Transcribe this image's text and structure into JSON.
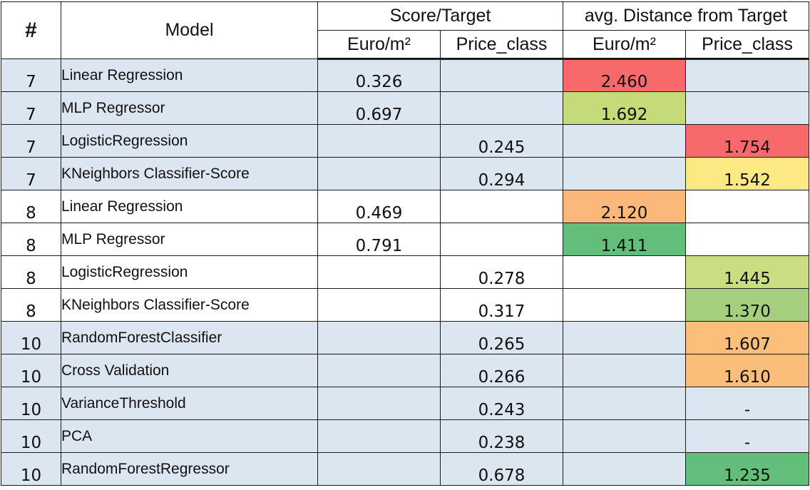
{
  "header": {
    "num": "#",
    "model": "Model",
    "group_score": "Score/Target",
    "group_distance": "avg. Distance from Target",
    "sub_euro_1": "Euro/m²",
    "sub_price_1": "Price_class",
    "sub_euro_2": "Euro/m²",
    "sub_price_2": "Price_class"
  },
  "colors": {
    "blue_row": "#dce6f1",
    "white_row": "#ffffff",
    "red": "#f8696b",
    "orange_red": "#f98370",
    "orange": "#fbbf7a",
    "light_orange": "#fcc07c",
    "yellow": "#ffeb84",
    "yellow_green": "#d3e282",
    "light_green": "#c4dc80",
    "green": "#a3d17e",
    "dark_green": "#63be7b"
  },
  "rows": [
    {
      "num": "7",
      "model": "Linear Regression",
      "score_euro": "0.326",
      "score_price": "",
      "dist_euro": "2.460",
      "dist_price": "",
      "row_bg": "#dce6f1",
      "dist_euro_bg": "#f8696b",
      "dist_price_bg": ""
    },
    {
      "num": "7",
      "model": "MLP Regressor",
      "score_euro": "0.697",
      "score_price": "",
      "dist_euro": "1.692",
      "dist_price": "",
      "row_bg": "#dce6f1",
      "dist_euro_bg": "#c5da79",
      "dist_price_bg": ""
    },
    {
      "num": "7",
      "model": "LogisticRegression",
      "score_euro": "",
      "score_price": "0.245",
      "dist_euro": "",
      "dist_price": "1.754",
      "row_bg": "#dce6f1",
      "dist_euro_bg": "",
      "dist_price_bg": "#f8696b"
    },
    {
      "num": "7",
      "model": "KNeighbors Classifier-Score",
      "score_euro": "",
      "score_price": "0.294",
      "dist_euro": "",
      "dist_price": "1.542",
      "row_bg": "#dce6f1",
      "dist_euro_bg": "",
      "dist_price_bg": "#fde984"
    },
    {
      "num": "8",
      "model": "Linear Regression",
      "score_euro": "0.469",
      "score_price": "",
      "dist_euro": "2.120",
      "dist_price": "",
      "row_bg": "#ffffff",
      "dist_euro_bg": "#fbb87a",
      "dist_price_bg": ""
    },
    {
      "num": "8",
      "model": "MLP Regressor",
      "score_euro": "0.791",
      "score_price": "",
      "dist_euro": "1.411",
      "dist_price": "",
      "row_bg": "#ffffff",
      "dist_euro_bg": "#63be7b",
      "dist_price_bg": ""
    },
    {
      "num": "8",
      "model": "LogisticRegression",
      "score_euro": "",
      "score_price": "0.278",
      "dist_euro": "",
      "dist_price": "1.445",
      "row_bg": "#ffffff",
      "dist_euro_bg": "",
      "dist_price_bg": "#cbdd81"
    },
    {
      "num": "8",
      "model": "KNeighbors Classifier-Score",
      "score_euro": "",
      "score_price": "0.317",
      "dist_euro": "",
      "dist_price": "1.370",
      "row_bg": "#ffffff",
      "dist_euro_bg": "",
      "dist_price_bg": "#a5cf7e"
    },
    {
      "num": "10",
      "model": "RandomForestClassifier",
      "score_euro": "",
      "score_price": "0.265",
      "dist_euro": "",
      "dist_price": "1.607",
      "row_bg": "#dce6f1",
      "dist_euro_bg": "",
      "dist_price_bg": "#fbbf7b"
    },
    {
      "num": "10",
      "model": "Cross Validation",
      "score_euro": "",
      "score_price": "0.266",
      "dist_euro": "",
      "dist_price": "1.610",
      "row_bg": "#dce6f1",
      "dist_euro_bg": "",
      "dist_price_bg": "#fbbd7a"
    },
    {
      "num": "10",
      "model": "VarianceThreshold",
      "score_euro": "",
      "score_price": "0.243",
      "dist_euro": "",
      "dist_price": "-",
      "row_bg": "#dce6f1",
      "dist_euro_bg": "",
      "dist_price_bg": ""
    },
    {
      "num": "10",
      "model": "PCA",
      "score_euro": "",
      "score_price": "0.238",
      "dist_euro": "",
      "dist_price": "-",
      "row_bg": "#dce6f1",
      "dist_euro_bg": "",
      "dist_price_bg": ""
    },
    {
      "num": "10",
      "model": "RandomForestRegressor",
      "score_euro": "",
      "score_price": "0.678",
      "dist_euro": "",
      "dist_price": "1.235",
      "row_bg": "#dce6f1",
      "dist_euro_bg": "",
      "dist_price_bg": "#63be7b"
    }
  ]
}
